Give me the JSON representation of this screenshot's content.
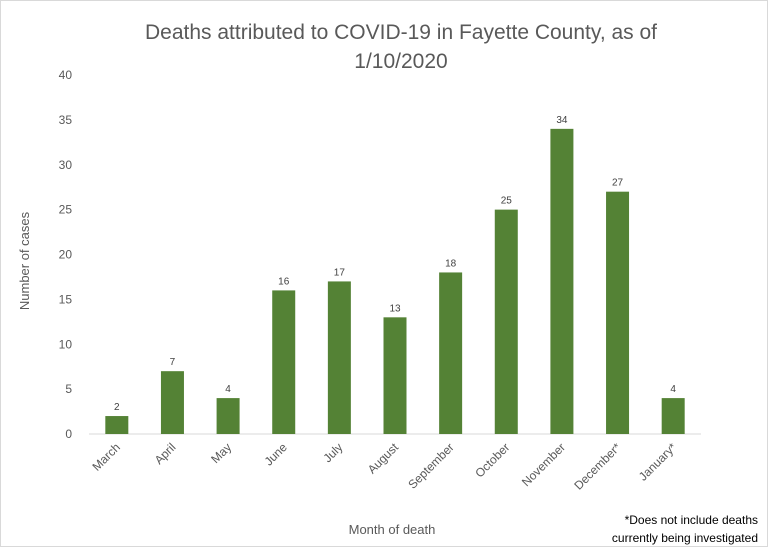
{
  "chart_data": {
    "type": "bar",
    "title_lines": [
      "Deaths attributed to COVID-19 in Fayette County, as of",
      "1/10/2020"
    ],
    "xlabel": "Month of death",
    "ylabel": "Number of cases",
    "categories": [
      "March",
      "April",
      "May",
      "June",
      "July",
      "August",
      "September",
      "October",
      "November",
      "December*",
      "January*"
    ],
    "values": [
      2,
      7,
      4,
      16,
      17,
      13,
      18,
      25,
      34,
      27,
      4
    ],
    "ylim": [
      0,
      40
    ],
    "yticks": [
      "0",
      "5",
      "10",
      "15",
      "20",
      "25",
      "30",
      "35",
      "40"
    ],
    "data_labels": [
      "2",
      "7",
      "4",
      "16",
      "17",
      "13",
      "18",
      "25",
      "34",
      "27",
      "4"
    ],
    "bar_color": "#548235",
    "grid": false,
    "legend": "none",
    "footnote_lines": [
      "*Does not include deaths",
      "currently being investigated"
    ]
  }
}
